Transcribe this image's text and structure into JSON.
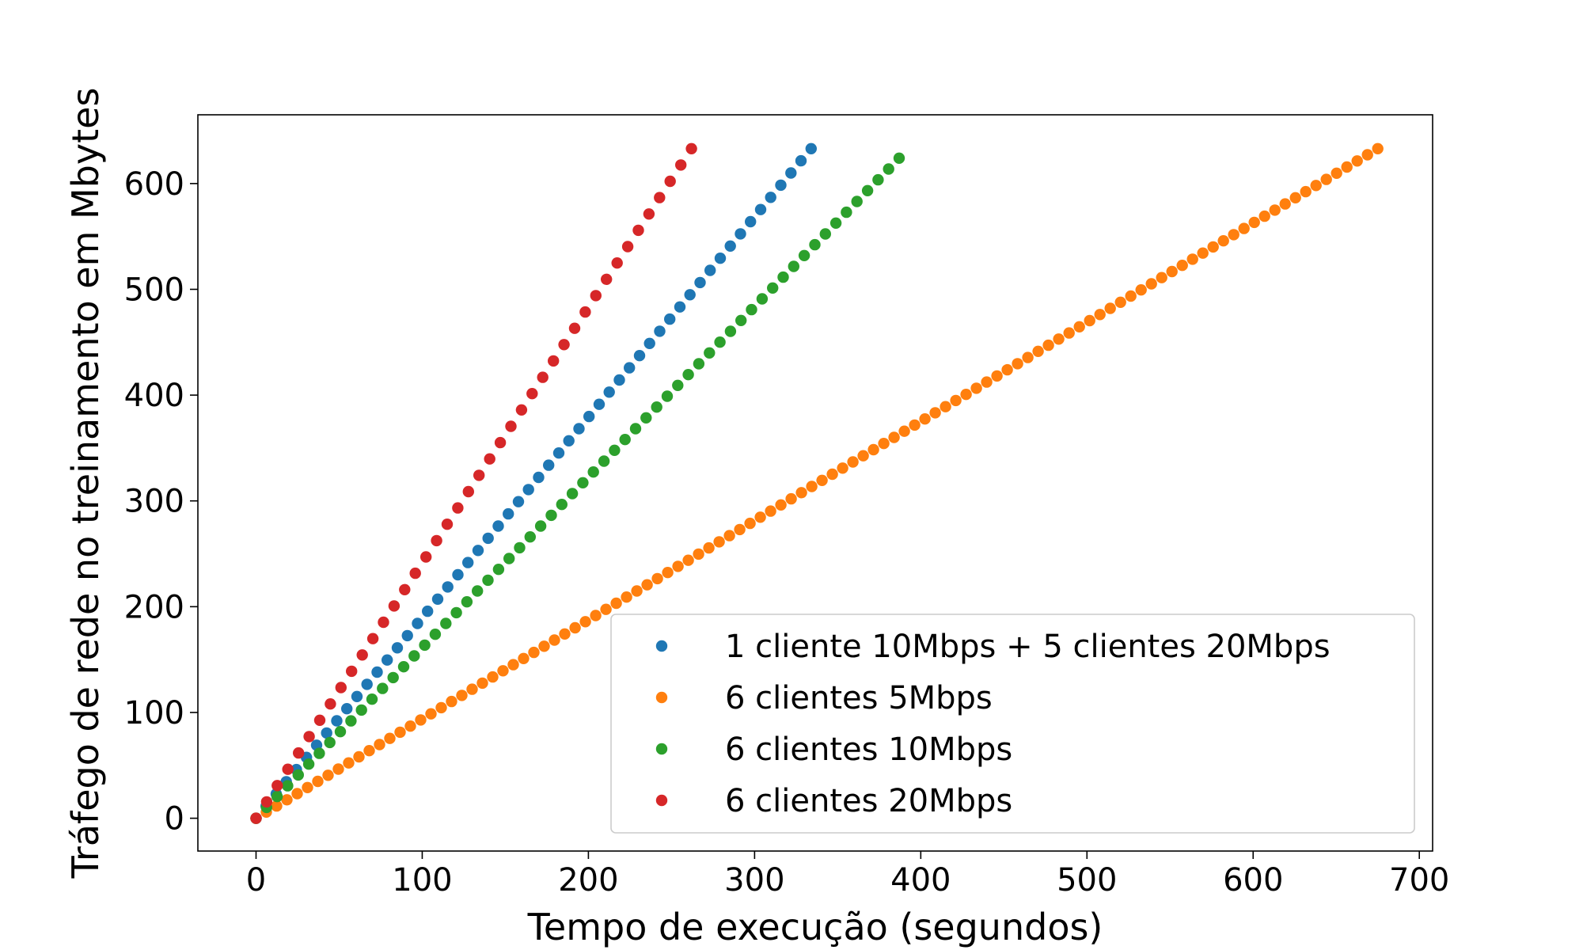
{
  "chart_data": {
    "type": "scatter",
    "title": "",
    "xlabel": "Tempo de execução (segundos)",
    "ylabel": "Tráfego de rede no treinamento em Mbytes",
    "xlim": [
      -35,
      708
    ],
    "ylim": [
      -31,
      665
    ],
    "xticks": [
      0,
      100,
      200,
      300,
      400,
      500,
      600,
      700
    ],
    "yticks": [
      0,
      100,
      200,
      300,
      400,
      500,
      600
    ],
    "xtick_labels": [
      "0",
      "100",
      "200",
      "300",
      "400",
      "500",
      "600",
      "700"
    ],
    "ytick_labels": [
      "0",
      "100",
      "200",
      "300",
      "400",
      "500",
      "600"
    ],
    "grid": false,
    "legend_position": "lower-right",
    "series": [
      {
        "name": "1 cliente 10Mbps + 5 clientes 20Mbps",
        "color": "#1f77b4",
        "x_start": 0,
        "x_end": 334,
        "n": 56,
        "y_start": 0,
        "y_end": 633
      },
      {
        "name": "6 clientes 5Mbps",
        "color": "#ff7f0e",
        "x_start": 0,
        "x_end": 675,
        "n": 110,
        "y_start": 0,
        "y_end": 633
      },
      {
        "name": "6 clientes 10Mbps",
        "color": "#2ca02c",
        "x_start": 0,
        "x_end": 387,
        "n": 62,
        "y_start": 0,
        "y_end": 624
      },
      {
        "name": "6 clientes 20Mbps",
        "color": "#d62728",
        "x_start": 0,
        "x_end": 262,
        "n": 42,
        "y_start": 0,
        "y_end": 633
      }
    ]
  }
}
